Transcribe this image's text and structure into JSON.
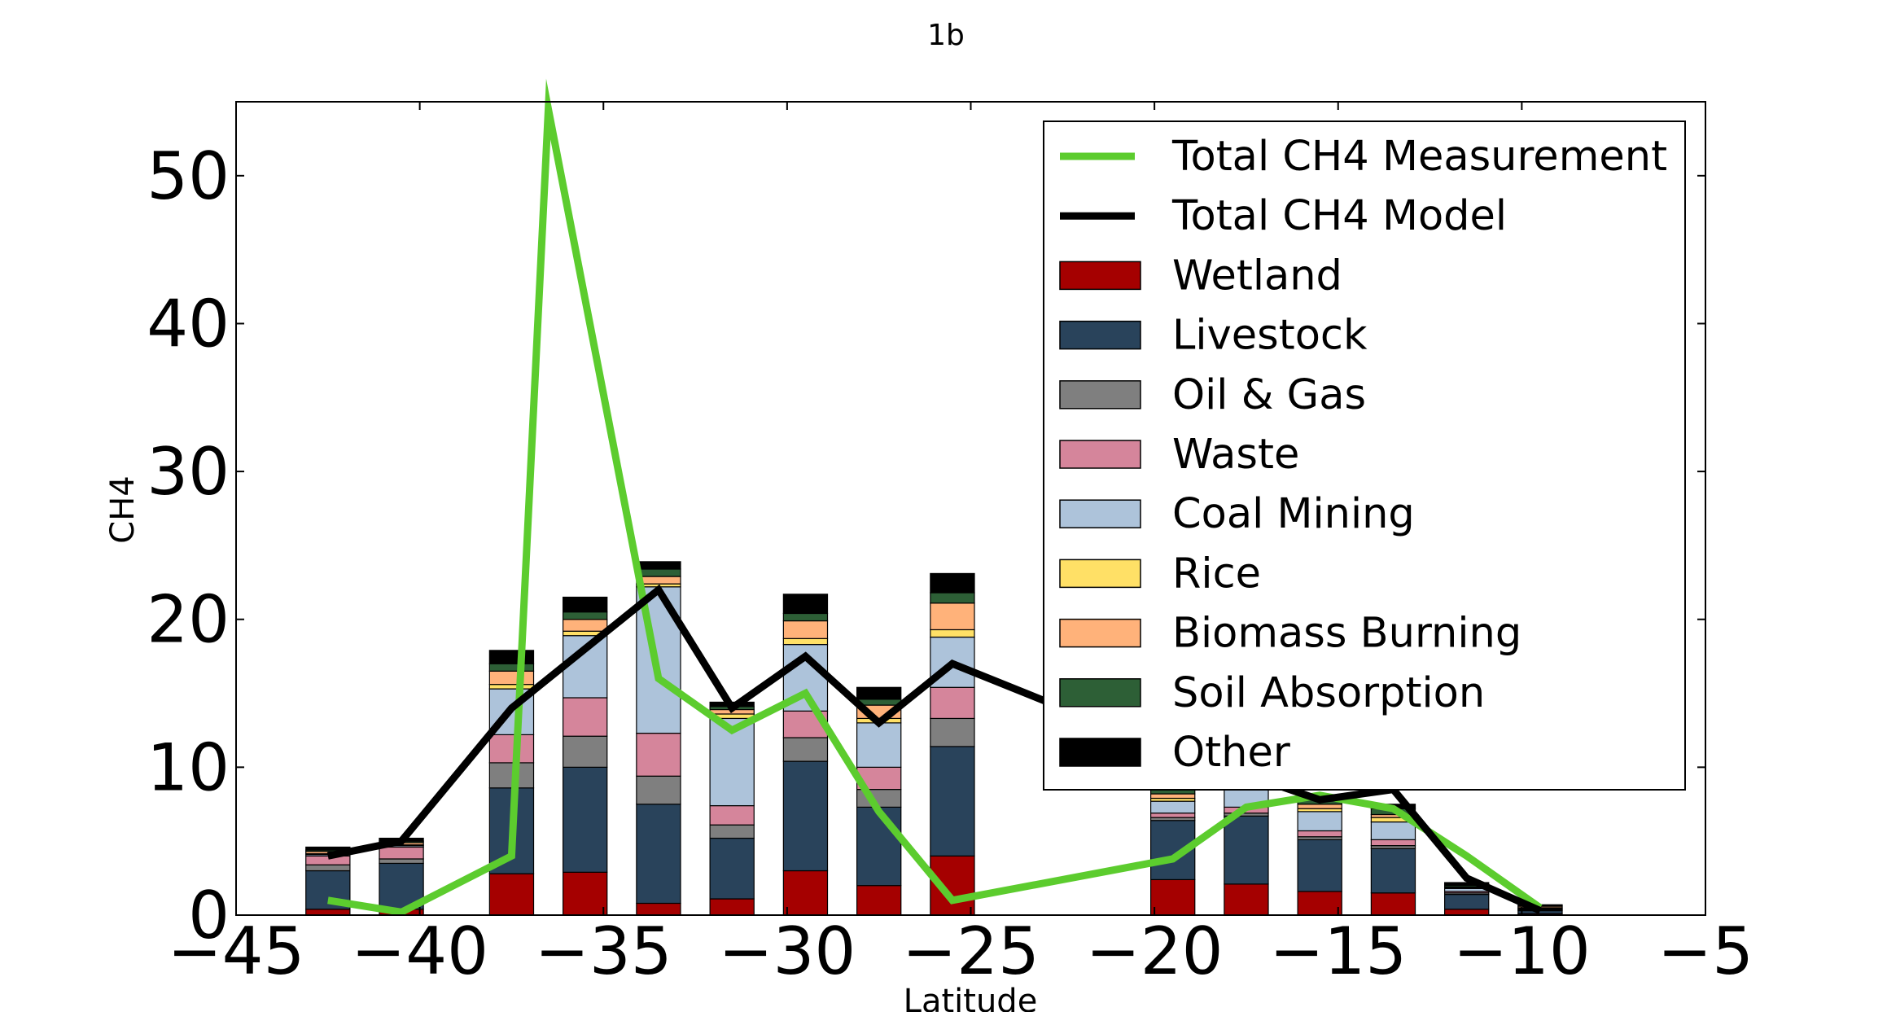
{
  "chart_data": {
    "type": "bar",
    "title": "1b",
    "xlabel": "Latitude",
    "ylabel": "CH4",
    "xlim": [
      -45,
      -5
    ],
    "ylim": [
      0,
      55
    ],
    "xticks": [
      -45,
      -40,
      -35,
      -30,
      -25,
      -20,
      -15,
      -10,
      -5
    ],
    "xtick_labels": [
      "−45",
      "−40",
      "−35",
      "−30",
      "−25",
      "−20",
      "−15",
      "−10",
      "−5"
    ],
    "yticks": [
      0,
      10,
      20,
      30,
      40,
      50
    ],
    "ytick_labels": [
      "0",
      "10",
      "20",
      "30",
      "40",
      "50"
    ],
    "grid": false,
    "legend_position": "top-right",
    "bar_width": 1.2,
    "x": [
      -42.5,
      -40.5,
      -37.5,
      -35.5,
      -33.5,
      -31.5,
      -29.5,
      -27.5,
      -25.5,
      -19.5,
      -17.5,
      -15.5,
      -13.5,
      -11.5,
      -9.5
    ],
    "stack_series": [
      {
        "name": "Wetland",
        "color": "#a50000",
        "values": [
          0.4,
          0.4,
          2.8,
          2.9,
          0.8,
          1.1,
          3.0,
          2.0,
          4.0,
          2.4,
          2.1,
          1.6,
          1.5,
          0.4,
          0.1
        ]
      },
      {
        "name": "Livestock",
        "color": "#29435b",
        "values": [
          2.6,
          3.1,
          5.8,
          7.1,
          6.7,
          4.1,
          7.4,
          5.3,
          7.4,
          4.0,
          4.6,
          3.5,
          3.0,
          1.0,
          0.2
        ]
      },
      {
        "name": "Oil & Gas",
        "color": "#7f7f7f",
        "values": [
          0.4,
          0.3,
          1.7,
          2.1,
          1.9,
          0.9,
          1.6,
          1.2,
          1.9,
          0.2,
          0.2,
          0.2,
          0.2,
          0.1,
          0.05
        ]
      },
      {
        "name": "Waste",
        "color": "#d5859b",
        "values": [
          0.6,
          0.8,
          1.9,
          2.6,
          2.9,
          1.3,
          1.8,
          1.5,
          2.1,
          0.3,
          0.4,
          0.4,
          0.4,
          0.1,
          0.05
        ]
      },
      {
        "name": "Coal Mining",
        "color": "#adc3da",
        "values": [
          0.1,
          0.1,
          3.1,
          4.2,
          9.9,
          5.9,
          4.5,
          3.0,
          3.4,
          0.8,
          1.5,
          1.3,
          1.2,
          0.2,
          0.05
        ]
      },
      {
        "name": "Rice",
        "color": "#ffe066",
        "values": [
          0.05,
          0.05,
          0.3,
          0.3,
          0.2,
          0.3,
          0.4,
          0.3,
          0.5,
          0.2,
          0.2,
          0.2,
          0.3,
          0.05,
          0.05
        ]
      },
      {
        "name": "Biomass Burning",
        "color": "#ffb27a",
        "values": [
          0.15,
          0.15,
          0.9,
          0.8,
          0.5,
          0.3,
          1.2,
          0.9,
          1.8,
          0.3,
          0.3,
          0.3,
          0.2,
          0.05,
          0.1
        ]
      },
      {
        "name": "Soil Absorption",
        "color": "#2d5f36",
        "values": [
          0.1,
          0.1,
          0.5,
          0.5,
          0.5,
          0.2,
          0.5,
          0.4,
          0.7,
          0.3,
          0.3,
          0.3,
          0.4,
          0.1,
          0.05
        ]
      },
      {
        "name": "Other",
        "color": "#000000",
        "values": [
          0.2,
          0.2,
          0.9,
          1.0,
          0.5,
          0.3,
          1.3,
          0.8,
          1.3,
          0.3,
          0.3,
          0.3,
          0.3,
          0.2,
          0.05
        ]
      }
    ],
    "line_series": [
      {
        "name": "Total CH4 Measurement",
        "color": "#5ccc2e",
        "x": [
          -42.5,
          -40.5,
          -37.5,
          -36.5,
          -33.5,
          -31.5,
          -29.5,
          -27.5,
          -25.5,
          -19.5,
          -17.5,
          -15.5,
          -13.5,
          -11.5,
          -9.5
        ],
        "values": [
          1.0,
          0.2,
          4.0,
          54.5,
          16.0,
          12.5,
          15.0,
          7.0,
          1.0,
          3.8,
          7.3,
          8.1,
          7.2,
          4.0,
          0.5
        ]
      },
      {
        "name": "Total CH4 Model",
        "color": "#000000",
        "x": [
          -42.5,
          -40.5,
          -37.5,
          -35.5,
          -33.5,
          -31.5,
          -29.5,
          -27.5,
          -25.5,
          -19.5,
          -17.5,
          -15.5,
          -13.5,
          -11.5,
          -9.5
        ],
        "values": [
          4.0,
          5.0,
          14.0,
          18.0,
          22.0,
          14.0,
          17.5,
          13.0,
          17.0,
          11.0,
          9.5,
          7.8,
          8.5,
          2.5,
          0.3
        ]
      }
    ]
  }
}
